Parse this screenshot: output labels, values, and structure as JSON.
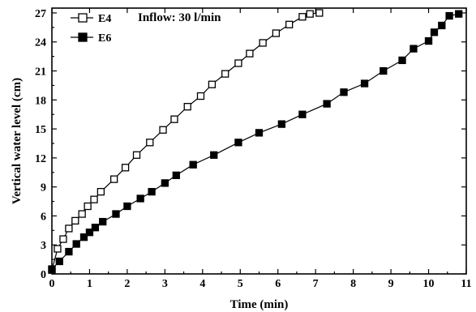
{
  "chart_data": {
    "type": "line",
    "title": "",
    "xlabel": "Time (min)",
    "ylabel": "Vertical water level (cm)",
    "xlim": [
      0,
      11
    ],
    "ylim": [
      0,
      27.5
    ],
    "x_ticks": [
      0,
      1,
      2,
      3,
      4,
      5,
      6,
      7,
      8,
      9,
      10,
      11
    ],
    "y_ticks": [
      0,
      3,
      6,
      9,
      12,
      15,
      18,
      21,
      24,
      27
    ],
    "annotation": "Inflow: 30 l/min",
    "legend_position": "top-left",
    "grid": false,
    "series": [
      {
        "name": "E4",
        "marker": "open-square",
        "color": "#000000",
        "points": [
          [
            0,
            0.4
          ],
          [
            0.15,
            2.6
          ],
          [
            0.3,
            3.6
          ],
          [
            0.45,
            4.7
          ],
          [
            0.62,
            5.5
          ],
          [
            0.8,
            6.2
          ],
          [
            0.95,
            7.0
          ],
          [
            1.12,
            7.7
          ],
          [
            1.3,
            8.5
          ],
          [
            1.65,
            9.8
          ],
          [
            1.95,
            11.0
          ],
          [
            2.25,
            12.3
          ],
          [
            2.6,
            13.6
          ],
          [
            2.95,
            14.9
          ],
          [
            3.25,
            16.0
          ],
          [
            3.6,
            17.3
          ],
          [
            3.95,
            18.4
          ],
          [
            4.25,
            19.6
          ],
          [
            4.6,
            20.7
          ],
          [
            4.95,
            21.8
          ],
          [
            5.25,
            22.8
          ],
          [
            5.6,
            23.9
          ],
          [
            5.95,
            24.9
          ],
          [
            6.3,
            25.8
          ],
          [
            6.65,
            26.6
          ],
          [
            6.85,
            26.9
          ],
          [
            7.1,
            27.0
          ]
        ]
      },
      {
        "name": "E6",
        "marker": "filled-square",
        "color": "#000000",
        "points": [
          [
            0,
            0.5
          ],
          [
            0.2,
            1.3
          ],
          [
            0.45,
            2.3
          ],
          [
            0.65,
            3.1
          ],
          [
            0.85,
            3.8
          ],
          [
            1.0,
            4.3
          ],
          [
            1.15,
            4.8
          ],
          [
            1.35,
            5.4
          ],
          [
            1.7,
            6.2
          ],
          [
            2.0,
            7.0
          ],
          [
            2.35,
            7.8
          ],
          [
            2.65,
            8.5
          ],
          [
            3.0,
            9.4
          ],
          [
            3.3,
            10.2
          ],
          [
            3.75,
            11.3
          ],
          [
            4.3,
            12.3
          ],
          [
            4.95,
            13.6
          ],
          [
            5.5,
            14.6
          ],
          [
            6.1,
            15.5
          ],
          [
            6.65,
            16.5
          ],
          [
            7.3,
            17.6
          ],
          [
            7.75,
            18.8
          ],
          [
            8.3,
            19.7
          ],
          [
            8.8,
            21.0
          ],
          [
            9.3,
            22.1
          ],
          [
            9.6,
            23.3
          ],
          [
            10.0,
            24.1
          ],
          [
            10.15,
            25.0
          ],
          [
            10.35,
            25.7
          ],
          [
            10.55,
            26.7
          ],
          [
            10.8,
            26.9
          ]
        ]
      }
    ]
  }
}
